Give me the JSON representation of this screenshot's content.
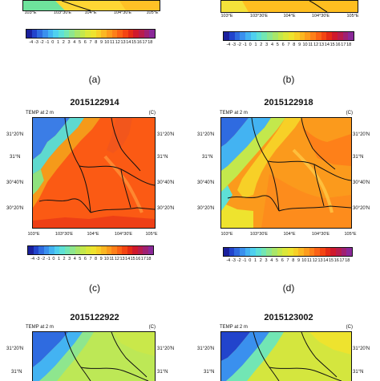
{
  "panels": {
    "a": {
      "label": "(a)"
    },
    "b": {
      "label": "(b)"
    },
    "c": {
      "label": "(c)",
      "title": "2015122914",
      "variable": "TEMP at 2 m",
      "unit": "(C)"
    },
    "d": {
      "label": "(d)",
      "title": "2015122918",
      "variable": "TEMP at 2 m",
      "unit": "(C)"
    },
    "e": {
      "title": "2015122922",
      "variable": "TEMP at 2 m",
      "unit": "(C)"
    },
    "f": {
      "title": "2015123002",
      "variable": "TEMP at 2 m",
      "unit": "(C)"
    }
  },
  "lat_labels": [
    "31°20'N",
    "31°N",
    "30°40'N",
    "30°20'N"
  ],
  "lat_labels_top": [
    "31°20'N",
    "31°N"
  ],
  "lon_labels_a": [
    "103°E",
    "103°30'E",
    "104°E",
    "104°30'E",
    "105°E"
  ],
  "lon_labels_b": [
    "103°E",
    "103°30'E",
    "104°E",
    "104°30'E",
    "105°E"
  ],
  "lon_labels": [
    "103°E",
    "103°30'E",
    "104°E",
    "104°30'E",
    "105°E"
  ],
  "colorbar_ticks": [
    "-4",
    "-3",
    "-2",
    "-1",
    "0",
    "1",
    "2",
    "3",
    "4",
    "5",
    "6",
    "7",
    "8",
    "9",
    "10",
    "11",
    "12",
    "13",
    "14",
    "15",
    "16",
    "17",
    "18"
  ],
  "colorbar_colors": [
    "#1a1f9c",
    "#2244cc",
    "#2f6be0",
    "#3a90ee",
    "#43b3f2",
    "#4fd0ef",
    "#5ee0d6",
    "#72e6b4",
    "#8ee68e",
    "#a8e66a",
    "#c3e84c",
    "#dbe83a",
    "#eee32e",
    "#f7d027",
    "#fbb722",
    "#fd9c1d",
    "#fe8019",
    "#fb6215",
    "#f44512",
    "#e42b16",
    "#d0192c",
    "#b81c4d",
    "#a02072",
    "#8a2898"
  ],
  "colors": {
    "background": "#ffffff",
    "border": "#111111"
  }
}
